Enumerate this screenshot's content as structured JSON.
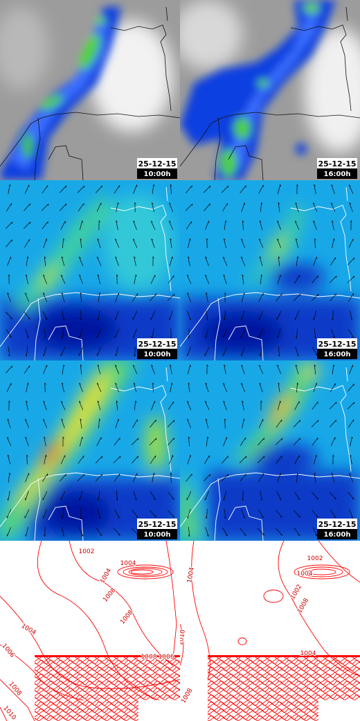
{
  "rows": [
    {
      "panels": [
        {
          "date": "25-12-15",
          "time": "10:00h"
        },
        {
          "date": "25-12-15",
          "time": "16:00h"
        }
      ]
    },
    {
      "panels": [
        {
          "date": "25-12-15",
          "time": "10:00h"
        },
        {
          "date": "25-12-15",
          "time": "16:00h"
        }
      ]
    },
    {
      "panels": [
        {
          "date": "25-12-15",
          "time": "10:00h"
        },
        {
          "date": "25-12-15",
          "time": "16:00h"
        }
      ]
    }
  ],
  "isobars": [
    {
      "labels": [
        "1002",
        "1004",
        "1004",
        "1008",
        "1008",
        "1004",
        "1006",
        "1008",
        "1010",
        "1006",
        "1008"
      ]
    },
    {
      "labels": [
        "1002",
        "1004",
        "1004",
        "1002",
        "1008",
        "1010",
        "1004",
        "1008"
      ]
    }
  ]
}
